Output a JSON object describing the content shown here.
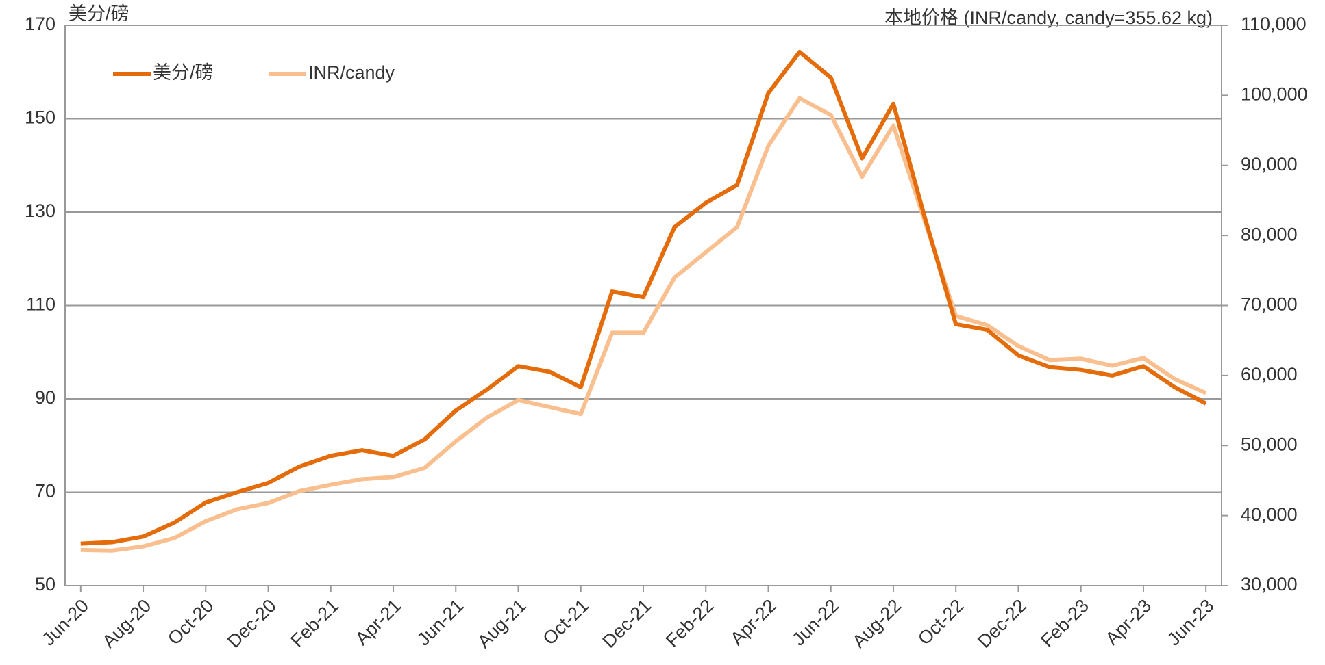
{
  "chart_data": {
    "type": "line",
    "y_label": "美分/磅",
    "y2_label": "本地价格 (INR/candy, candy=355.62 kg)",
    "categories": [
      "Jun-20",
      null,
      "Aug-20",
      null,
      "Oct-20",
      null,
      "Dec-20",
      null,
      "Feb-21",
      null,
      "Apr-21",
      null,
      "Jun-21",
      null,
      "Aug-21",
      null,
      "Oct-21",
      null,
      "Dec-21",
      null,
      "Feb-22",
      null,
      "Apr-22",
      null,
      "Jun-22",
      null,
      "Aug-22",
      null,
      "Oct-22",
      null,
      "Dec-22",
      null,
      "Feb-23",
      null,
      "Apr-23",
      null,
      "Jun-23"
    ],
    "series": [
      {
        "name": "美分/磅",
        "color": "#e46c0a",
        "values": [
          59,
          59.3,
          60.5,
          63.5,
          67.8,
          70,
          72,
          75.5,
          77.8,
          79,
          77.8,
          81.3,
          87.5,
          92,
          97,
          95.8,
          92.5,
          113,
          111.8,
          126.8,
          132,
          135.8,
          155.5,
          164.3,
          158.8,
          141.5,
          153.2,
          129,
          106,
          104.8,
          99.3,
          96.8,
          96.2,
          95,
          97,
          92.5,
          89
        ]
      },
      {
        "name": "INR/candy",
        "color": "#f9bf8f",
        "axis": "y2",
        "values": [
          35100,
          35000,
          35600,
          36800,
          39200,
          40900,
          41800,
          43500,
          44400,
          45200,
          45500,
          46800,
          50600,
          54000,
          56500,
          55500,
          54500,
          66100,
          66100,
          74000,
          77600,
          81200,
          92800,
          99600,
          97200,
          88400,
          95700,
          82100,
          68500,
          67200,
          64200,
          62200,
          62400,
          61400,
          62500,
          59500,
          57500
        ]
      }
    ],
    "ylim": [
      50,
      170
    ],
    "yticks": [
      50,
      70,
      90,
      110,
      130,
      150,
      170
    ],
    "y2lim": [
      30000,
      110000
    ],
    "y2ticks": [
      {
        "value": 30000,
        "label": "30,000"
      },
      {
        "value": 40000,
        "label": "40,000"
      },
      {
        "value": 50000,
        "label": "50,000"
      },
      {
        "value": 60000,
        "label": "60,000"
      },
      {
        "value": 70000,
        "label": "70,000"
      },
      {
        "value": 80000,
        "label": "80,000"
      },
      {
        "value": 90000,
        "label": "90,000"
      },
      {
        "value": 100000,
        "label": "100,000"
      },
      {
        "value": 110000,
        "label": "110,000"
      }
    ],
    "grid": true,
    "legend": "top-left"
  }
}
